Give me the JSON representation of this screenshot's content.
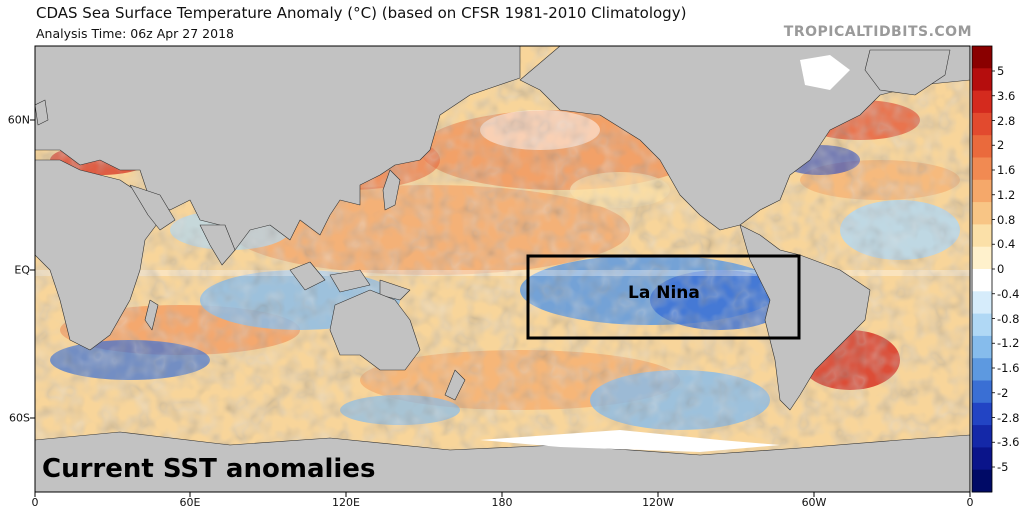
{
  "header": {
    "title": "CDAS Sea Surface Temperature Anomaly (°C) (based on CFSR 1981-2010 Climatology)",
    "subtitle": "Analysis Time: 06z Apr 27 2018",
    "site": "TROPICALTIDBITS.COM"
  },
  "map": {
    "longitude_labels": [
      "0",
      "60E",
      "120E",
      "180",
      "120W",
      "60W",
      "0"
    ],
    "latitude_labels": [
      "60N",
      "EQ",
      "60S"
    ],
    "annotation_box_label": "La Nina",
    "caption": "Current SST anomalies"
  },
  "colorbar": {
    "labels": [
      "5",
      "3.6",
      "2.8",
      "2",
      "1.6",
      "1.2",
      "0.8",
      "0.4",
      "0",
      "-0.4",
      "-0.8",
      "-1.2",
      "-1.6",
      "-2",
      "-2.8",
      "-3.6",
      "-5"
    ],
    "colors": [
      "#8a0000",
      "#b50d0d",
      "#d42a1e",
      "#e24a2e",
      "#ea6a3c",
      "#f18a52",
      "#f5a86a",
      "#f8c585",
      "#fbe0a8",
      "#fff1cc",
      "#ffffff",
      "#d6ecfb",
      "#b0d8f5",
      "#86bcec",
      "#5d99e0",
      "#3a6fd4",
      "#2244c4",
      "#1428a8",
      "#0a148a",
      "#000a66"
    ]
  },
  "colors": {
    "land": "#c2c2c2",
    "ice": "#ffffff",
    "box": "#000000"
  }
}
